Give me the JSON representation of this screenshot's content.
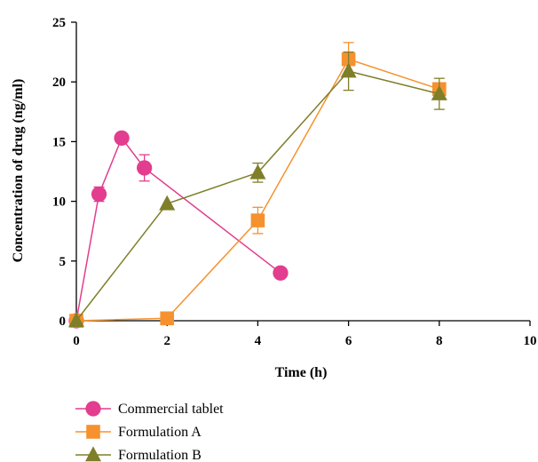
{
  "chart_data": {
    "type": "line",
    "xlabel": "Time (h)",
    "ylabel": "Concentration of drug (ng/ml)",
    "xlim": [
      0,
      10
    ],
    "ylim": [
      0,
      25
    ],
    "xticks": [
      "0",
      "2",
      "4",
      "6",
      "8",
      "10"
    ],
    "yticks": [
      "0",
      "5",
      "10",
      "15",
      "20",
      "25"
    ],
    "grid": false,
    "legend_position": "bottom-left",
    "series": [
      {
        "name": "Commercial tablet",
        "color": "#e23d8e",
        "marker": "circle",
        "points": [
          {
            "x": 0,
            "y": 0
          },
          {
            "x": 0.5,
            "y": 10.6,
            "err": 0.6
          },
          {
            "x": 1,
            "y": 15.3,
            "err": 0.2
          },
          {
            "x": 1.5,
            "y": 12.8,
            "err": 1.1
          },
          {
            "x": 4.5,
            "y": 4.0,
            "err": 0.2
          }
        ]
      },
      {
        "name": "Formulation A",
        "color": "#f5922f",
        "marker": "square",
        "points": [
          {
            "x": 0,
            "y": 0
          },
          {
            "x": 2,
            "y": 0.2
          },
          {
            "x": 4,
            "y": 8.4,
            "err": 1.1
          },
          {
            "x": 6,
            "y": 21.9,
            "err": 1.4
          },
          {
            "x": 8,
            "y": 19.4,
            "err": 0.5
          }
        ]
      },
      {
        "name": "Formulation B",
        "color": "#7f7f2a",
        "marker": "triangle",
        "points": [
          {
            "x": 0,
            "y": 0
          },
          {
            "x": 2,
            "y": 9.8
          },
          {
            "x": 4,
            "y": 12.4,
            "err": 0.8
          },
          {
            "x": 6,
            "y": 20.9,
            "err": 1.6
          },
          {
            "x": 8,
            "y": 19.0,
            "err": 1.3
          }
        ]
      }
    ]
  }
}
